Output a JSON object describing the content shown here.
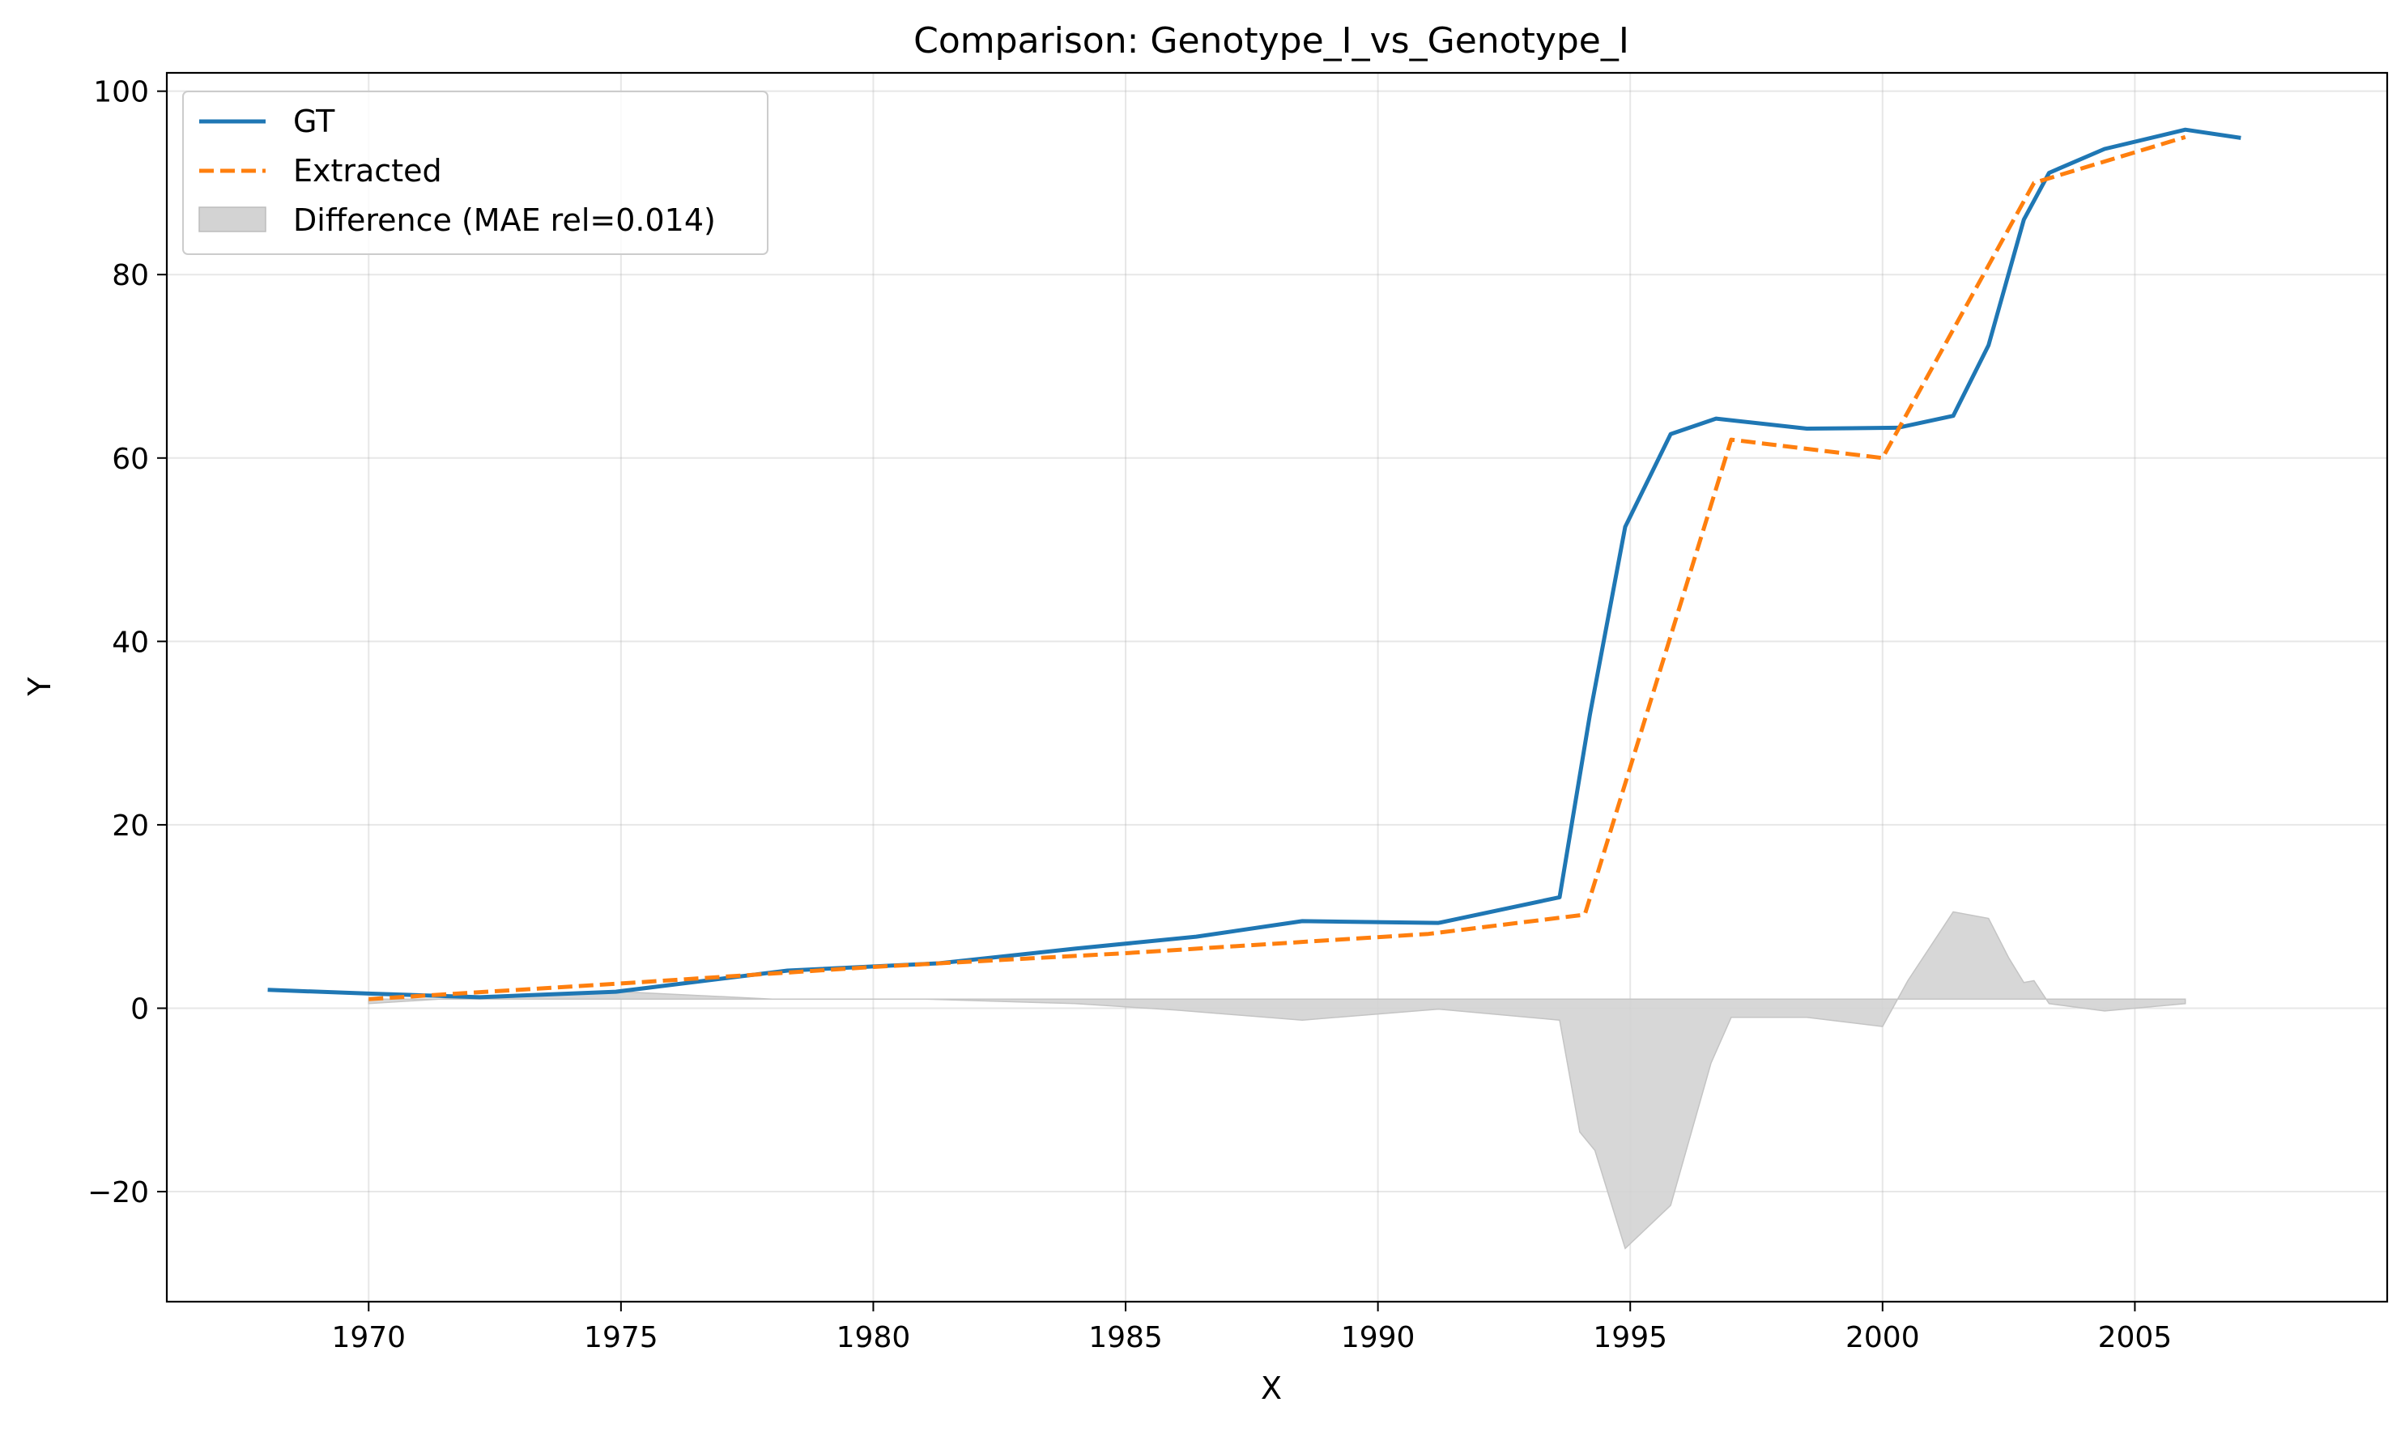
{
  "chart_data": {
    "type": "line",
    "title": "Comparison: Genotype_I_vs_Genotype_I",
    "xlabel": "X",
    "ylabel": "Y",
    "xlim": [
      1966,
      2010
    ],
    "ylim": [
      -32,
      102
    ],
    "xticks": [
      1970,
      1975,
      1980,
      1985,
      1990,
      1995,
      2000,
      2005
    ],
    "yticks": [
      -20,
      0,
      20,
      40,
      60,
      80,
      100
    ],
    "ytick_labels": [
      "−20",
      "0",
      "20",
      "40",
      "60",
      "80",
      "100"
    ],
    "grid": true,
    "legend_position": "upper-left",
    "series": [
      {
        "name": "GT",
        "style": "solid",
        "color": "#1f77b4",
        "x": [
          1968.0,
          1970.0,
          1972.2,
          1974.9,
          1978.3,
          1981.3,
          1984.0,
          1986.4,
          1988.5,
          1991.2,
          1993.6,
          1994.2,
          1994.9,
          1995.8,
          1996.7,
          1998.5,
          2000.3,
          2001.4,
          2002.1,
          2002.8,
          2003.3,
          2004.4,
          2006.0,
          2007.1
        ],
        "y": [
          2.0,
          1.6,
          1.2,
          1.8,
          4.1,
          4.9,
          6.5,
          7.8,
          9.5,
          9.3,
          12.1,
          32.0,
          52.5,
          62.6,
          64.3,
          63.2,
          63.3,
          64.6,
          72.3,
          86.0,
          91.1,
          93.7,
          95.8,
          94.9
        ]
      },
      {
        "name": "Extracted",
        "style": "dashed",
        "color": "#ff7f0e",
        "x": [
          1970.0,
          1975.0,
          1980.0,
          1985.0,
          1991.0,
          1994.1,
          1997.0,
          2000.0,
          2003.0,
          2006.0
        ],
        "y": [
          1.0,
          2.7,
          4.5,
          6.0,
          8.1,
          10.2,
          62.0,
          60.0,
          90.0,
          95.0
        ]
      }
    ],
    "difference": {
      "name": "Difference (MAE rel=0.014)",
      "color": "#d3d3d3",
      "baseline": 1.0,
      "x": [
        1970.0,
        1972.0,
        1975.0,
        1978.0,
        1981.0,
        1984.0,
        1986.0,
        1988.5,
        1991.2,
        1993.6,
        1994.0,
        1994.3,
        1994.9,
        1995.8,
        1996.6,
        1997.0,
        1998.5,
        2000.0,
        2000.5,
        2001.4,
        2002.1,
        2002.5,
        2002.8,
        2003.0,
        2003.3,
        2004.4,
        2006.0
      ],
      "y": [
        0.5,
        1.2,
        1.8,
        1.0,
        1.0,
        0.5,
        -0.2,
        -1.3,
        -0.1,
        -1.3,
        -13.5,
        -15.5,
        -26.2,
        -21.5,
        -6.0,
        -1.0,
        -1.0,
        -2.0,
        3.0,
        10.5,
        9.8,
        5.5,
        2.8,
        3.0,
        0.5,
        -0.3,
        0.5
      ]
    }
  }
}
